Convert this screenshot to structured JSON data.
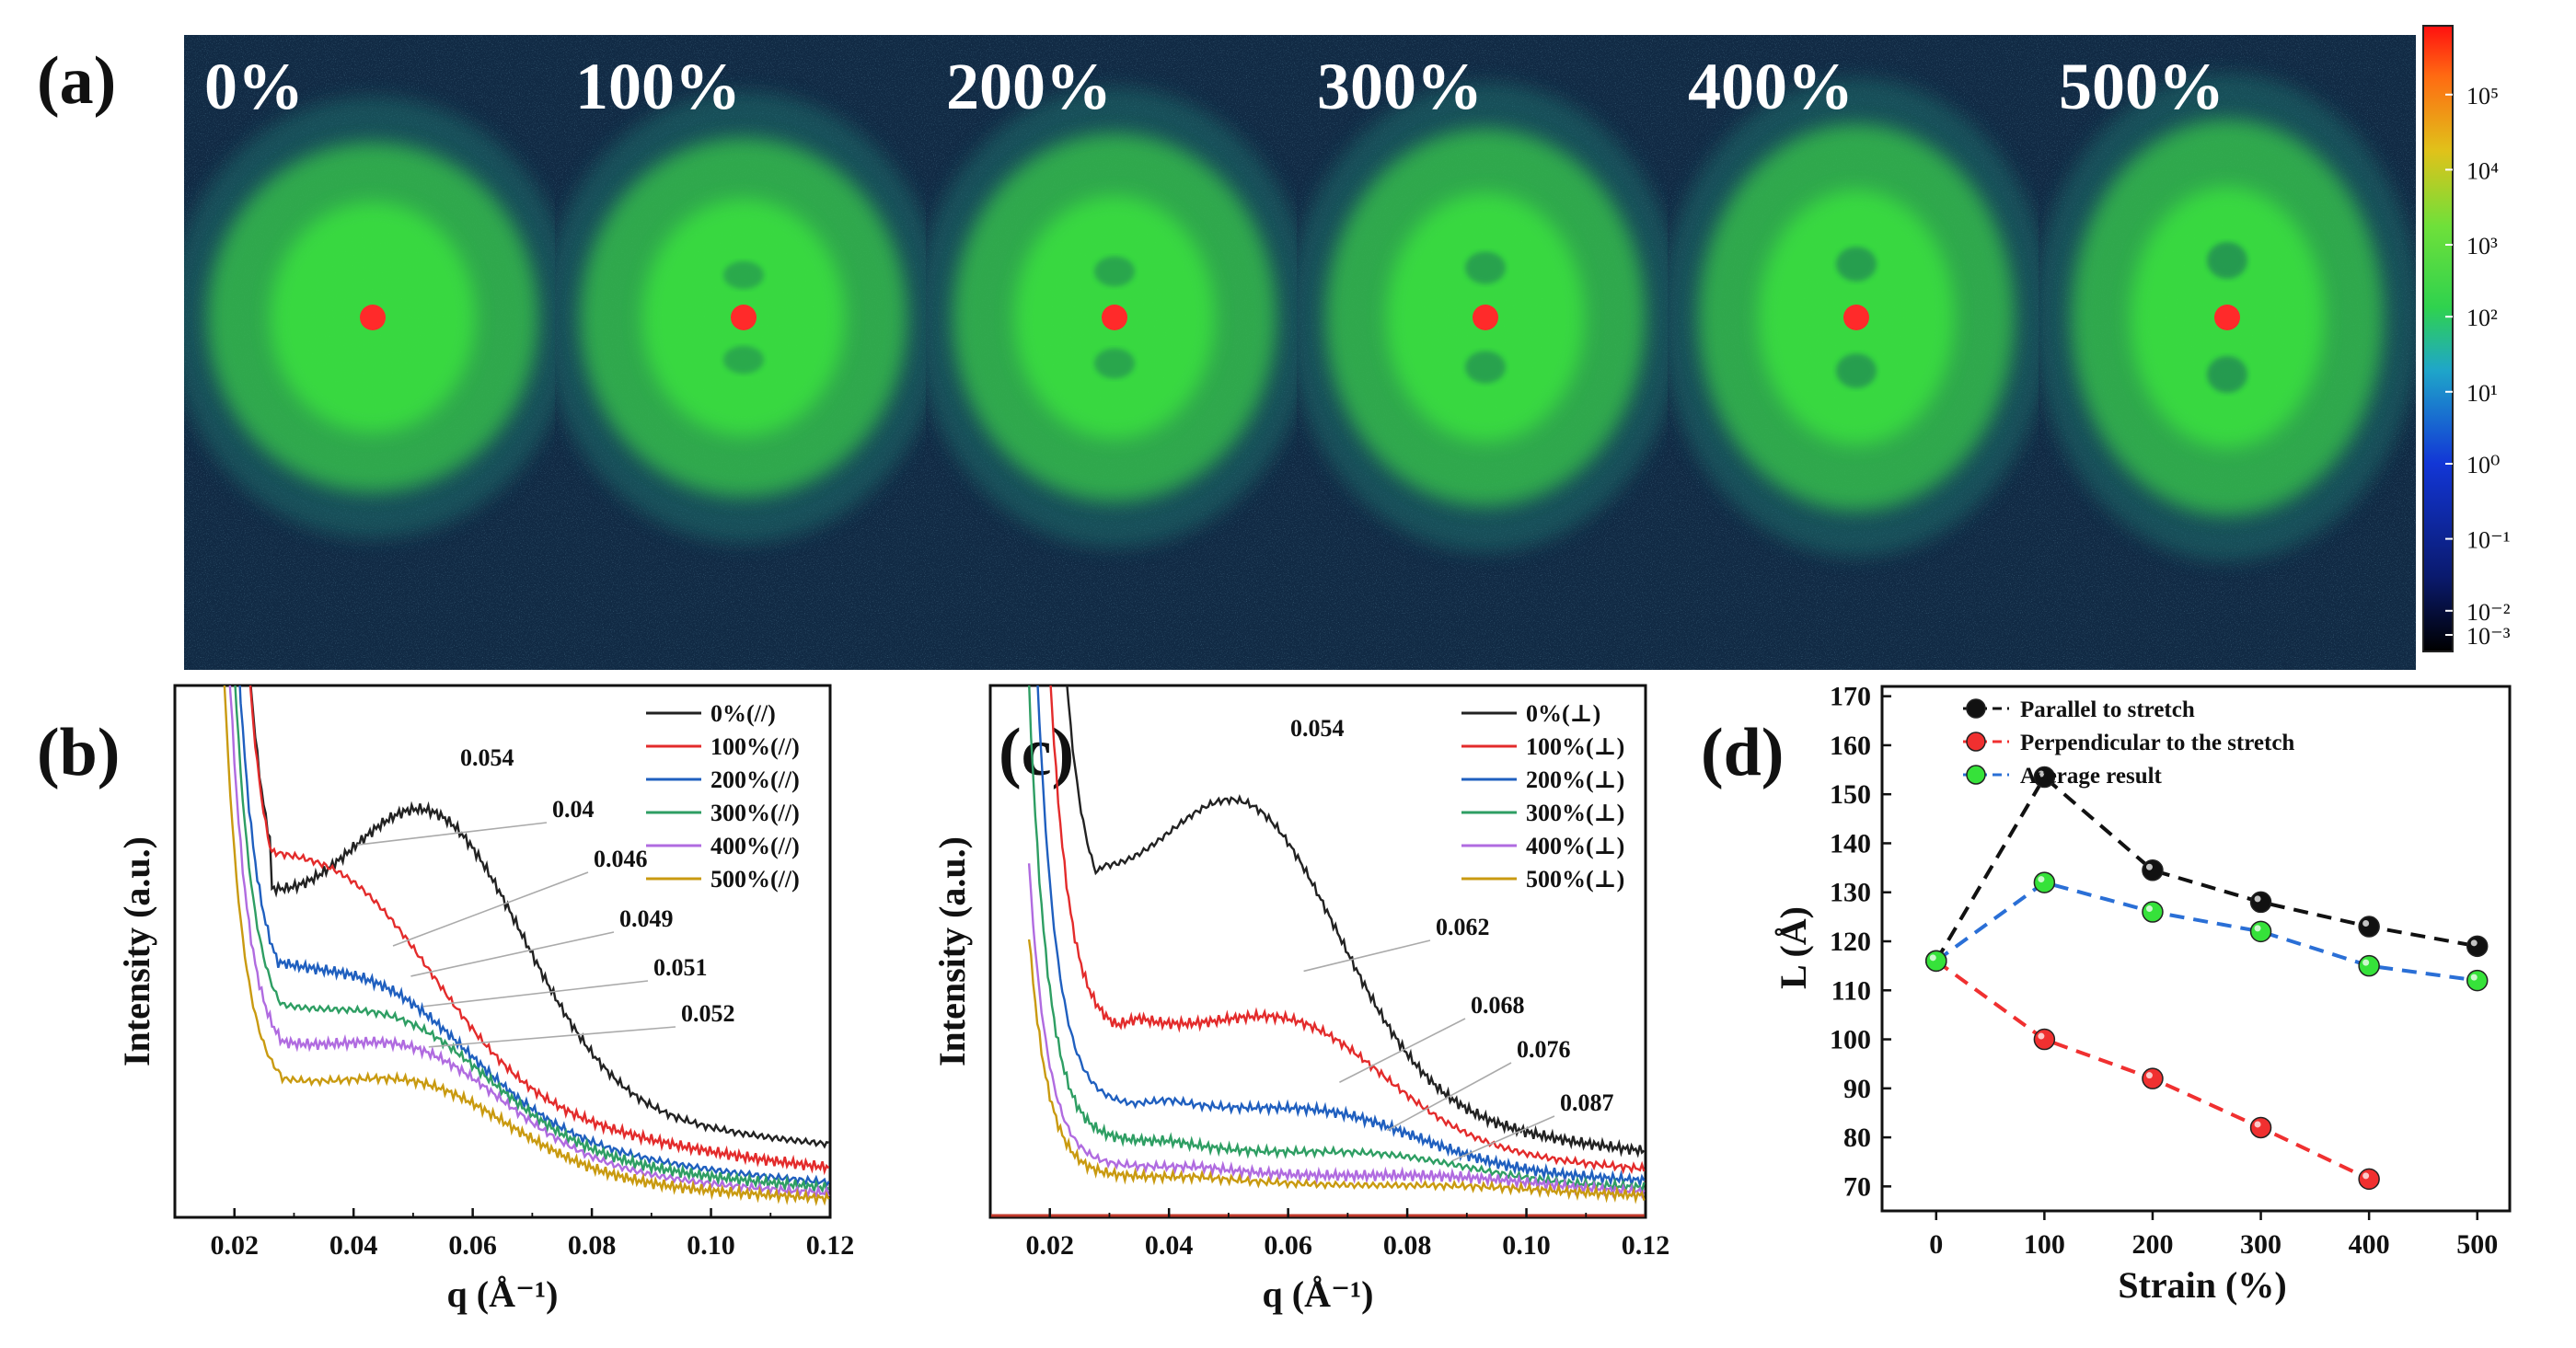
{
  "panel_labels": {
    "a": "(a)",
    "b": "(b)",
    "c": "(c)",
    "d": "(d)"
  },
  "colors": {
    "bg": "#112a44",
    "halo": "#39c64a",
    "core": "#3ef23a",
    "beam": "#ff2a2a",
    "black": "#222222",
    "red": "#e32b2b",
    "blue": "#1f5fbf",
    "green": "#2e9e63",
    "purple": "#b06be0",
    "gold": "#c99a10",
    "d_black": "#111111",
    "d_red": "#f03030",
    "d_green": "#36e23a",
    "d_blue_line": "#2a6fd6"
  },
  "saxs_images": [
    {
      "label": "0%",
      "strain": 0
    },
    {
      "label": "100%",
      "strain": 100
    },
    {
      "label": "200%",
      "strain": 200
    },
    {
      "label": "300%",
      "strain": 300
    },
    {
      "label": "400%",
      "strain": 400
    },
    {
      "label": "500%",
      "strain": 500
    }
  ],
  "colorbar": {
    "ticks": [
      "10⁵",
      "10⁴",
      "10³",
      "10²",
      "10¹",
      "10⁰",
      "10⁻¹",
      "10⁻²",
      "10⁻³"
    ]
  },
  "chart_data": [
    {
      "id": "b",
      "type": "line",
      "xlabel": "q (Å⁻¹)",
      "ylabel": "Intensity (a.u.)",
      "xlim": [
        0.01,
        0.12
      ],
      "xticks": [
        0.02,
        0.04,
        0.06,
        0.08,
        0.1,
        0.12
      ],
      "xtick_labels": [
        "0.02",
        "0.04",
        "0.06",
        "0.08",
        "0.10",
        "0.12"
      ],
      "ylim": [
        0,
        1
      ],
      "series": [
        {
          "name": "0%(//)",
          "color_key": "black",
          "min_q": 0.026,
          "min_y": 0.57,
          "peak_q": 0.054,
          "peak_y": 0.95,
          "end_y": 0.1
        },
        {
          "name": "100%(//)",
          "color_key": "red",
          "min_q": 0.026,
          "min_y": 0.56,
          "peak_q": 0.04,
          "peak_y": 0.73,
          "end_y": 0.05
        },
        {
          "name": "200%(//)",
          "color_key": "blue",
          "min_q": 0.028,
          "min_y": 0.42,
          "peak_q": 0.046,
          "peak_y": 0.53,
          "end_y": 0.03
        },
        {
          "name": "300%(//)",
          "color_key": "green",
          "min_q": 0.028,
          "min_y": 0.36,
          "peak_q": 0.049,
          "peak_y": 0.47,
          "end_y": 0.025
        },
        {
          "name": "400%(//)",
          "color_key": "purple",
          "min_q": 0.028,
          "min_y": 0.3,
          "peak_q": 0.051,
          "peak_y": 0.41,
          "end_y": 0.02
        },
        {
          "name": "500%(//)",
          "color_key": "gold",
          "min_q": 0.028,
          "min_y": 0.24,
          "peak_q": 0.052,
          "peak_y": 0.33,
          "end_y": 0.015
        }
      ],
      "annotations": [
        {
          "text": "0.054",
          "q": 0.054,
          "y": 0.95
        },
        {
          "text": "0.04",
          "q": 0.04,
          "y": 0.73
        },
        {
          "text": "0.046",
          "q": 0.046,
          "y": 0.53
        },
        {
          "text": "0.049",
          "q": 0.049,
          "y": 0.47
        },
        {
          "text": "0.051",
          "q": 0.051,
          "y": 0.41
        },
        {
          "text": "0.052",
          "q": 0.052,
          "y": 0.33
        }
      ]
    },
    {
      "id": "c",
      "type": "line",
      "xlabel": "q (Å⁻¹)",
      "ylabel": "Intensity (a.u.)",
      "xlim": [
        0.01,
        0.12
      ],
      "xticks": [
        0.02,
        0.04,
        0.06,
        0.08,
        0.1,
        0.12
      ],
      "xtick_labels": [
        "0.02",
        "0.04",
        "0.06",
        "0.08",
        "0.10",
        "0.12"
      ],
      "ylim": [
        0,
        1
      ],
      "series": [
        {
          "name": "0%(⊥)",
          "color_key": "black",
          "min_q": 0.029,
          "min_y": 0.58,
          "peak_q": 0.054,
          "peak_y": 0.96,
          "end_y": 0.08
        },
        {
          "name": "100%(⊥)",
          "color_key": "red",
          "min_q": 0.035,
          "min_y": 0.36,
          "peak_q": 0.062,
          "peak_y": 0.48,
          "end_y": 0.06
        },
        {
          "name": "200%(⊥)",
          "color_key": "blue",
          "min_q": 0.04,
          "min_y": 0.22,
          "peak_q": 0.068,
          "peak_y": 0.26,
          "end_y": 0.05
        },
        {
          "name": "300%(⊥)",
          "color_key": "green",
          "min_q": 0.04,
          "min_y": 0.15,
          "peak_q": 0.076,
          "peak_y": 0.165,
          "end_y": 0.045
        },
        {
          "name": "400%(⊥)",
          "color_key": "purple",
          "min_q": 0.045,
          "min_y": 0.1,
          "peak_q": 0.087,
          "peak_y": 0.105,
          "end_y": 0.04
        },
        {
          "name": "500%(⊥)",
          "color_key": "gold",
          "min_q": 0.045,
          "min_y": 0.08,
          "peak_q": 0.09,
          "peak_y": 0.08,
          "end_y": 0.035
        }
      ],
      "annotations": [
        {
          "text": "0.054",
          "q": 0.054,
          "y": 0.96
        },
        {
          "text": "0.062",
          "q": 0.062,
          "y": 0.48
        },
        {
          "text": "0.068",
          "q": 0.068,
          "y": 0.26
        },
        {
          "text": "0.076",
          "q": 0.076,
          "y": 0.165
        },
        {
          "text": "0.087",
          "q": 0.087,
          "y": 0.105
        }
      ]
    },
    {
      "id": "d",
      "type": "scatter",
      "xlabel": "Strain (%)",
      "ylabel": "L (Å)",
      "xlim": [
        -50,
        530
      ],
      "ylim": [
        65,
        172
      ],
      "xticks": [
        0,
        100,
        200,
        300,
        400,
        500
      ],
      "yticks": [
        70,
        80,
        90,
        100,
        110,
        120,
        130,
        140,
        150,
        160,
        170
      ],
      "series": [
        {
          "name": "Parallel to stretch",
          "color_key": "d_black",
          "line_key": "d_black",
          "x": [
            0,
            100,
            200,
            300,
            400,
            500
          ],
          "y": [
            116,
            153.5,
            134.5,
            128,
            123,
            119
          ]
        },
        {
          "name": "Perpendicular to the stretch",
          "color_key": "d_red",
          "line_key": "d_red",
          "x": [
            0,
            100,
            200,
            300,
            400
          ],
          "y": [
            116,
            100,
            92,
            82,
            71.5
          ]
        },
        {
          "name": "Average result",
          "color_key": "d_green",
          "line_key": "d_blue_line",
          "x": [
            0,
            100,
            200,
            300,
            400,
            500
          ],
          "y": [
            116,
            132,
            126,
            122,
            115,
            112
          ]
        }
      ]
    }
  ]
}
